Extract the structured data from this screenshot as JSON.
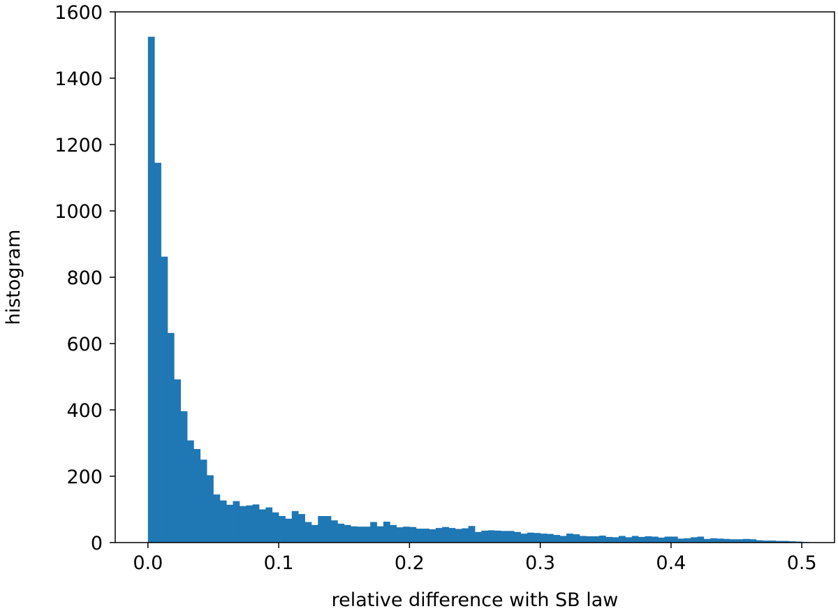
{
  "chart_data": {
    "type": "bar",
    "title": "",
    "xlabel": "relative difference with SB law",
    "ylabel": "histogram",
    "xlim": [
      -0.025,
      0.525
    ],
    "ylim": [
      0,
      1600
    ],
    "xticks": [
      0.0,
      0.1,
      0.2,
      0.3,
      0.4,
      0.5
    ],
    "xtick_labels": [
      "0.0",
      "0.1",
      "0.2",
      "0.3",
      "0.4",
      "0.5"
    ],
    "yticks": [
      0,
      200,
      400,
      600,
      800,
      1000,
      1200,
      1400,
      1600
    ],
    "ytick_labels": [
      "0",
      "200",
      "400",
      "600",
      "800",
      "1000",
      "1200",
      "1400",
      "1600"
    ],
    "bin_start": 0.0,
    "bin_width": 0.005,
    "color": "#1f77b4",
    "grid": false,
    "values": [
      1525,
      1145,
      862,
      632,
      492,
      396,
      308,
      282,
      250,
      203,
      145,
      127,
      114,
      125,
      110,
      112,
      115,
      100,
      106,
      91,
      80,
      72,
      95,
      86,
      62,
      53,
      80,
      80,
      67,
      57,
      53,
      49,
      48,
      48,
      62,
      49,
      63,
      53,
      46,
      48,
      47,
      42,
      42,
      40,
      44,
      47,
      44,
      41,
      43,
      50,
      32,
      36,
      37,
      36,
      35,
      35,
      32,
      27,
      30,
      29,
      27,
      26,
      23,
      20,
      27,
      25,
      20,
      19,
      19,
      21,
      17,
      16,
      20,
      16,
      20,
      17,
      19,
      18,
      15,
      18,
      18,
      12,
      13,
      16,
      18,
      11,
      13,
      12,
      11,
      10,
      10,
      11,
      10,
      7,
      6,
      6,
      5,
      5,
      4,
      3,
      2
    ]
  }
}
